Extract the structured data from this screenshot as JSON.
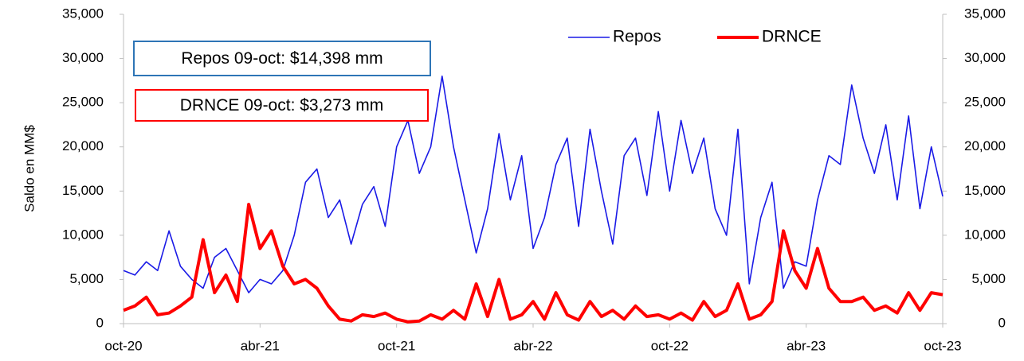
{
  "chart_data": {
    "type": "line",
    "ylabel": "Saldo en MM$",
    "x": [
      0,
      0.5,
      1,
      1.5,
      2,
      2.5,
      3,
      3.5,
      4,
      4.5,
      5,
      5.5,
      6,
      6.5,
      7,
      7.5,
      8,
      8.5,
      9,
      9.5,
      10,
      10.5,
      11,
      11.5,
      12,
      12.5,
      13,
      13.5,
      14,
      14.5,
      15,
      15.5,
      16,
      16.5,
      17,
      17.5,
      18,
      18.5,
      19,
      19.5,
      20,
      20.5,
      21,
      21.5,
      22,
      22.5,
      23,
      23.5,
      24,
      24.5,
      25,
      25.5,
      26,
      26.5,
      27,
      27.5,
      28,
      28.5,
      29,
      29.5,
      30,
      30.5,
      31,
      31.5,
      32,
      32.5,
      33,
      33.5,
      34,
      34.5,
      35,
      35.5,
      36
    ],
    "xlim": [
      0,
      36
    ],
    "xticks": [
      {
        "value": 0,
        "label": "oct-20"
      },
      {
        "value": 6,
        "label": "abr-21"
      },
      {
        "value": 12,
        "label": "oct-21"
      },
      {
        "value": 18,
        "label": "abr-22"
      },
      {
        "value": 24,
        "label": "oct-22"
      },
      {
        "value": 30,
        "label": "abr-23"
      },
      {
        "value": 36,
        "label": "oct-23"
      }
    ],
    "ylim": [
      0,
      35000
    ],
    "yticks": [
      0,
      {
        "value": 5000,
        "label": "5,000"
      },
      {
        "value": 10000,
        "label": "10,000"
      },
      {
        "value": 15000,
        "label": "15,000"
      },
      {
        "value": 20000,
        "label": "20,000"
      },
      {
        "value": 25000,
        "label": "25,000"
      },
      {
        "value": 30000,
        "label": "30,000"
      },
      {
        "value": 35000,
        "label": "35,000"
      }
    ],
    "y2lim": [
      0,
      35000
    ],
    "y2ticks": [
      0,
      {
        "value": 5000,
        "label": "5,000"
      },
      {
        "value": 10000,
        "label": "10,000"
      },
      {
        "value": 15000,
        "label": "15,000"
      },
      {
        "value": 20000,
        "label": "20,000"
      },
      {
        "value": 25000,
        "label": "25,000"
      },
      {
        "value": 30000,
        "label": "30,000"
      },
      {
        "value": 35000,
        "label": "35,000"
      }
    ],
    "legend": "upper right",
    "series": [
      {
        "name": "Repos",
        "color": "#1a1ae6",
        "width": 1.6,
        "values": [
          6000,
          5500,
          7000,
          6000,
          10500,
          6500,
          5000,
          4000,
          7500,
          8500,
          6000,
          3500,
          5000,
          4500,
          6000,
          10000,
          16000,
          17500,
          12000,
          14000,
          9000,
          13500,
          15500,
          11000,
          20000,
          23000,
          17000,
          20000,
          28000,
          20000,
          14000,
          8000,
          13000,
          21500,
          14000,
          19000,
          8500,
          12000,
          18000,
          21000,
          11000,
          22000,
          15000,
          9000,
          19000,
          21000,
          14500,
          24000,
          15000,
          23000,
          17000,
          21000,
          13000,
          10000,
          22000,
          4500,
          12000,
          16000,
          4000,
          7000,
          6500,
          14000,
          19000,
          18000,
          27000,
          21000,
          17000,
          22500,
          14000,
          23500,
          13000,
          20000,
          14398
        ]
      },
      {
        "name": "DRNCE",
        "color": "#ff0000",
        "width": 4,
        "values": [
          1500,
          2000,
          3000,
          1000,
          1200,
          2000,
          3000,
          9500,
          3500,
          5500,
          2500,
          13500,
          8500,
          10500,
          6500,
          4500,
          5000,
          4000,
          2000,
          500,
          300,
          1000,
          800,
          1200,
          500,
          200,
          300,
          1000,
          500,
          1500,
          500,
          4500,
          800,
          5000,
          500,
          1000,
          2500,
          500,
          3500,
          1000,
          400,
          2500,
          800,
          1500,
          500,
          2000,
          800,
          1000,
          500,
          1200,
          400,
          2500,
          800,
          1500,
          4500,
          500,
          1000,
          2500,
          10500,
          6000,
          4000,
          8500,
          4000,
          2500,
          2500,
          3000,
          1500,
          2000,
          1200,
          3500,
          1500,
          3500,
          3273
        ]
      }
    ],
    "annotations": [
      {
        "text": "Repos 09-oct: $14,398 mm",
        "color": "#2e75b6"
      },
      {
        "text": "DRNCE 09-oct: $3,273 mm",
        "color": "#ff0000"
      }
    ]
  }
}
